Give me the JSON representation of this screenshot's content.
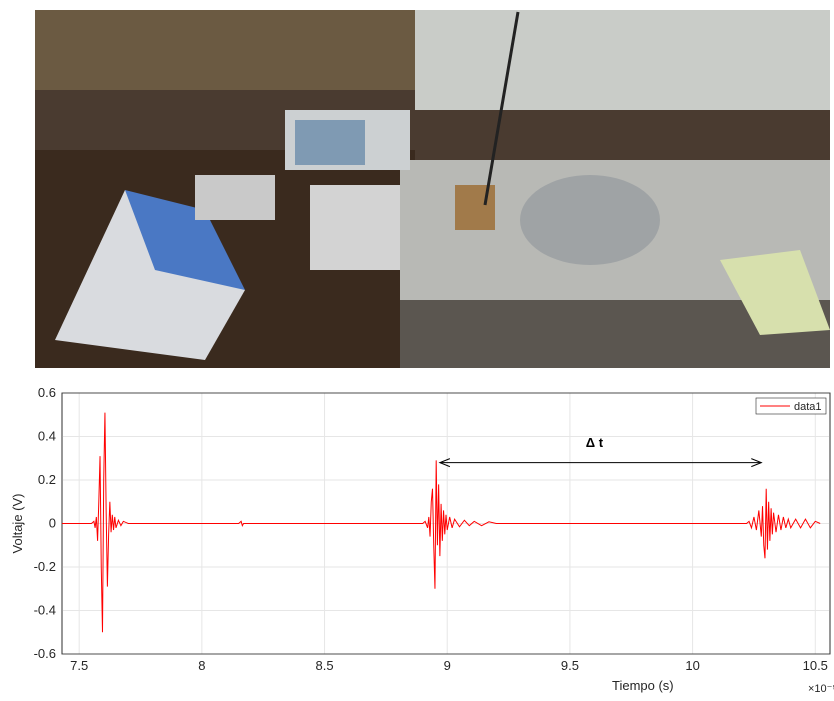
{
  "chart_data": {
    "type": "line",
    "xlabel": "Tiempo (s)",
    "ylabel": "Voltaje (V)",
    "x_exponent": "×10⁻⁵",
    "xlim": [
      7.43,
      10.56
    ],
    "ylim": [
      -0.6,
      0.6
    ],
    "xticks": [
      7.5,
      8,
      8.5,
      9,
      9.5,
      10,
      10.5
    ],
    "yticks": [
      -0.6,
      -0.4,
      -0.2,
      0,
      0.2,
      0.4,
      0.6
    ],
    "grid": true,
    "legend": "upper right",
    "annotation": {
      "text": "Δ t",
      "x_start": 8.97,
      "x_end": 10.28,
      "y": 0.28,
      "text_x": 9.6,
      "text_y": 0.37
    },
    "x": [
      7.43,
      7.55,
      7.56,
      7.565,
      7.57,
      7.575,
      7.58,
      7.585,
      7.59,
      7.595,
      7.6,
      7.605,
      7.61,
      7.615,
      7.62,
      7.625,
      7.63,
      7.635,
      7.64,
      7.645,
      7.65,
      7.66,
      7.67,
      7.68,
      7.7,
      8.15,
      8.16,
      8.165,
      8.17,
      8.9,
      8.91,
      8.92,
      8.925,
      8.93,
      8.935,
      8.94,
      8.945,
      8.95,
      8.955,
      8.96,
      8.965,
      8.97,
      8.975,
      8.98,
      8.985,
      8.99,
      8.995,
      9.0,
      9.01,
      9.02,
      9.03,
      9.05,
      9.07,
      9.09,
      9.11,
      9.14,
      9.17,
      9.2,
      10.22,
      10.23,
      10.24,
      10.25,
      10.26,
      10.27,
      10.28,
      10.285,
      10.29,
      10.295,
      10.3,
      10.305,
      10.31,
      10.315,
      10.32,
      10.325,
      10.33,
      10.34,
      10.35,
      10.36,
      10.37,
      10.38,
      10.39,
      10.4,
      10.42,
      10.44,
      10.46,
      10.48,
      10.5,
      10.52
    ],
    "series": [
      {
        "name": "data1",
        "color": "#ff0000",
        "values": [
          0,
          0,
          0.01,
          -0.02,
          0.03,
          -0.08,
          0.1,
          0.31,
          -0.2,
          -0.5,
          0.2,
          0.51,
          0.05,
          -0.29,
          -0.05,
          0.1,
          -0.04,
          0.04,
          -0.03,
          0.03,
          -0.02,
          0.015,
          -0.01,
          0.01,
          0,
          0,
          0.01,
          -0.01,
          0,
          0,
          0.01,
          -0.02,
          0.03,
          -0.06,
          0.1,
          0.16,
          -0.1,
          -0.3,
          0.29,
          -0.1,
          0.18,
          -0.15,
          0.09,
          -0.08,
          0.06,
          -0.05,
          0.04,
          -0.03,
          0.03,
          -0.02,
          0.02,
          -0.015,
          0.015,
          -0.01,
          0.01,
          -0.01,
          0.008,
          0,
          0,
          0.01,
          -0.02,
          0.03,
          -0.03,
          0.06,
          -0.06,
          0.08,
          -0.1,
          -0.16,
          0.16,
          -0.12,
          0.1,
          -0.08,
          0.07,
          -0.05,
          0.05,
          -0.04,
          0.04,
          -0.03,
          0.03,
          -0.02,
          0.02,
          -0.02,
          0.02,
          -0.02,
          0.02,
          -0.02,
          0.01,
          0
        ]
      }
    ]
  }
}
